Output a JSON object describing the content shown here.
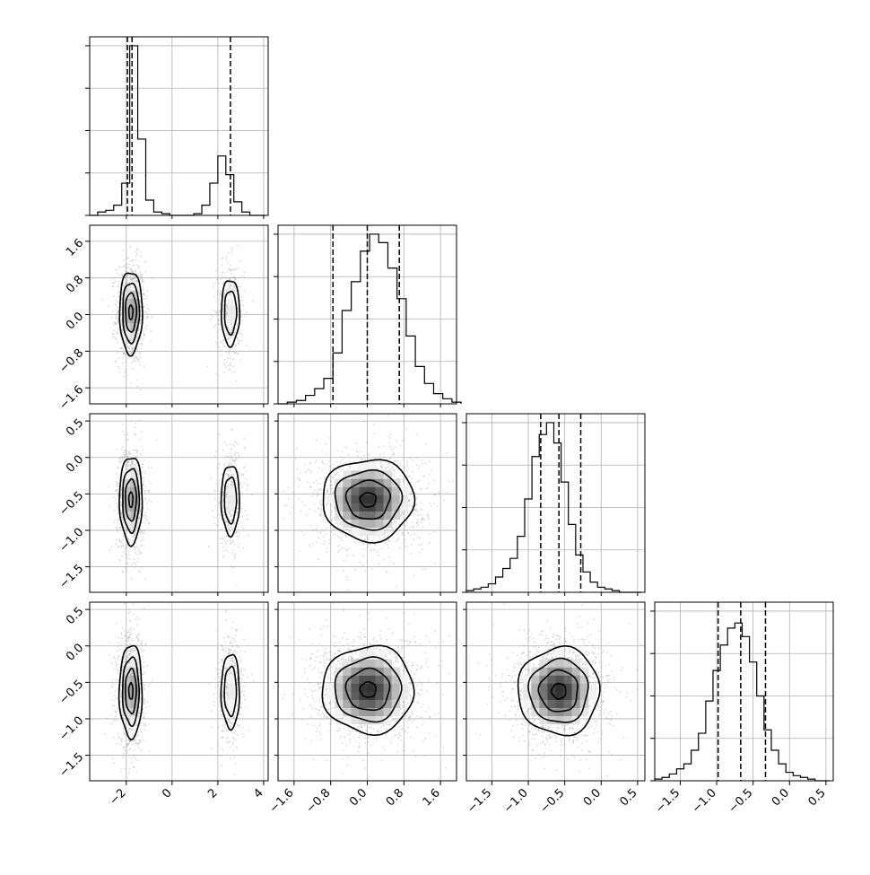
{
  "chart_data": {
    "type": "corner",
    "description_note": "",
    "parameters": [
      {
        "index": 0,
        "range": [
          -3.6,
          4.2
        ],
        "ticks": [
          -2,
          0,
          2,
          4
        ],
        "tick_labels": [
          "−2",
          "0",
          "2",
          "4"
        ]
      },
      {
        "index": 1,
        "range": [
          -1.95,
          1.95
        ],
        "ticks": [
          -1.6,
          -0.8,
          0.0,
          0.8,
          1.6
        ],
        "tick_labels": [
          "−1.6",
          "−0.8",
          "0.0",
          "0.8",
          "1.6"
        ]
      },
      {
        "index": 2,
        "range": [
          -1.85,
          0.6
        ],
        "ticks": [
          -1.5,
          -1.0,
          -0.5,
          0.0,
          0.5
        ],
        "tick_labels": [
          "−1.5",
          "−1.0",
          "−0.5",
          "0.0",
          "0.5"
        ]
      },
      {
        "index": 3,
        "range": [
          -1.85,
          0.6
        ],
        "ticks": [
          -1.5,
          -1.0,
          -0.5,
          0.0,
          0.5
        ],
        "tick_labels": [
          "−1.5",
          "−1.0",
          "−0.5",
          "0.0",
          "0.5"
        ]
      }
    ],
    "histograms": [
      {
        "param": 0,
        "quantiles": [
          -1.95,
          -1.75,
          2.55
        ],
        "max_y": 1.0,
        "bins_from": -3.6,
        "bin_width": 0.35,
        "counts": [
          0,
          0.02,
          0.03,
          0.06,
          0.19,
          1.0,
          0.45,
          0.09,
          0.02,
          0.01,
          0.0,
          0.0,
          0.0,
          0.01,
          0.06,
          0.19,
          0.35,
          0.24,
          0.08,
          0.02,
          0.0,
          0.0
        ]
      },
      {
        "param": 1,
        "quantiles": [
          -0.75,
          0.0,
          0.7
        ],
        "max_y": 1.0,
        "bins_from": -1.95,
        "bin_width": 0.2,
        "counts": [
          0,
          0.01,
          0.02,
          0.05,
          0.09,
          0.15,
          0.3,
          0.55,
          0.72,
          0.9,
          1.0,
          0.95,
          0.8,
          0.62,
          0.4,
          0.22,
          0.12,
          0.06,
          0.03,
          0.01
        ]
      },
      {
        "param": 2,
        "quantiles": [
          -0.83,
          -0.58,
          -0.28
        ],
        "max_y": 1.0,
        "bins_from": -1.85,
        "bin_width": 0.1,
        "counts": [
          0.01,
          0.02,
          0.03,
          0.05,
          0.09,
          0.14,
          0.2,
          0.33,
          0.55,
          0.8,
          0.93,
          1.0,
          0.88,
          0.65,
          0.4,
          0.22,
          0.12,
          0.06,
          0.03,
          0.02,
          0.01,
          0.0,
          0.0,
          0.0
        ]
      },
      {
        "param": 3,
        "quantiles": [
          -0.98,
          -0.67,
          -0.33
        ],
        "max_y": 1.0,
        "bins_from": -1.85,
        "bin_width": 0.1,
        "counts": [
          0.01,
          0.02,
          0.04,
          0.07,
          0.1,
          0.18,
          0.28,
          0.47,
          0.65,
          0.8,
          0.9,
          0.93,
          0.85,
          0.7,
          0.5,
          0.3,
          0.18,
          0.1,
          0.05,
          0.03,
          0.02,
          0.01,
          0.0,
          0.0
        ]
      }
    ],
    "pairs": [
      {
        "x": 0,
        "y": 1,
        "modes": [
          {
            "mx": -1.8,
            "my": 0.05,
            "sx": 0.25,
            "sy": 0.45,
            "w": 0.7,
            "peak": 0.85
          },
          {
            "mx": 2.55,
            "my": 0.05,
            "sx": 0.25,
            "sy": 0.45,
            "w": 0.3,
            "peak": 0.12
          }
        ]
      },
      {
        "x": 0,
        "y": 2,
        "modes": [
          {
            "mx": -1.8,
            "my": -0.58,
            "sx": 0.25,
            "sy": 0.3,
            "w": 0.7,
            "peak": 0.85
          },
          {
            "mx": 2.55,
            "my": -0.58,
            "sx": 0.25,
            "sy": 0.3,
            "w": 0.3,
            "peak": 0.12
          }
        ]
      },
      {
        "x": 0,
        "y": 3,
        "modes": [
          {
            "mx": -1.8,
            "my": -0.62,
            "sx": 0.25,
            "sy": 0.32,
            "w": 0.7,
            "peak": 0.85
          },
          {
            "mx": 2.55,
            "my": -0.62,
            "sx": 0.25,
            "sy": 0.32,
            "w": 0.3,
            "peak": 0.12
          }
        ]
      },
      {
        "x": 1,
        "y": 2,
        "modes": [
          {
            "mx": 0.02,
            "my": -0.58,
            "sx": 0.5,
            "sy": 0.28,
            "w": 1.0,
            "peak": 0.9
          }
        ]
      },
      {
        "x": 1,
        "y": 3,
        "modes": [
          {
            "mx": 0.02,
            "my": -0.6,
            "sx": 0.5,
            "sy": 0.3,
            "w": 1.0,
            "peak": 0.9
          }
        ]
      },
      {
        "x": 2,
        "y": 3,
        "modes": [
          {
            "mx": -0.58,
            "my": -0.62,
            "sx": 0.28,
            "sy": 0.3,
            "w": 1.0,
            "peak": 0.9
          }
        ]
      }
    ],
    "grid": true,
    "colors": {
      "line": "#000000",
      "grid": "#b0b0b0",
      "points": "#9a9a9a",
      "frame": "#000000"
    }
  }
}
